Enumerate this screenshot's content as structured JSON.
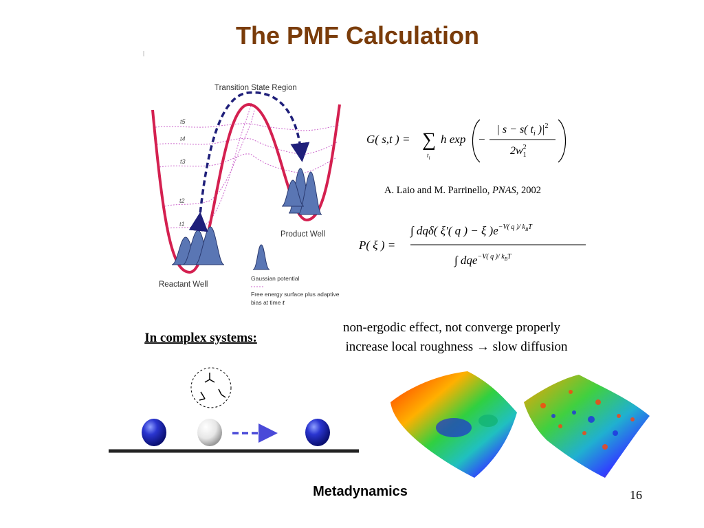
{
  "title": "The PMF Calculation",
  "figure": {
    "transition_label": "Transition State Region",
    "time_labels": [
      "t5",
      "t4",
      "t3",
      "t2",
      "t1"
    ],
    "product_label": "Product Well",
    "reactant_label": "Reactant Well",
    "legend": {
      "gaussian": "Gaussian potential",
      "surface_line1": "Free energy surface plus adaptive",
      "surface_line2": "bias at time ",
      "surface_time": "t"
    }
  },
  "equations": {
    "bias": {
      "lhs": "G( s,t ) =",
      "sum": "∑",
      "sum_index": "t",
      "sum_index_sub": "i",
      "term": "h exp",
      "minus": "−",
      "numerator": "| s − s( t",
      "numerator_sub": "i",
      "numerator_end": " )|",
      "numerator_sup": "2",
      "denominator": "2w",
      "denominator_sup": "2",
      "denominator_sub": "1"
    },
    "citation": {
      "authors": "A. Laio and M. Parrinello, ",
      "journal": "PNAS",
      "year": ", 2002"
    },
    "pmf": {
      "lhs": "P( ξ ) =",
      "numerator": "∫ dqδ( ξ′( q ) − ξ )e",
      "numerator_sup": "−V( q )/ k",
      "numerator_sup_sub": "B",
      "numerator_sup_end": "T",
      "denominator": "∫ dqe",
      "denominator_sup": "−V( q )/ k",
      "denominator_sup_sub": "B",
      "denominator_sup_end": "T"
    }
  },
  "systems_heading": "In complex systems:",
  "effects": [
    "non-ergodic effect, not converge properly",
    "increase local roughness → slow diffusion"
  ],
  "footer": {
    "caption": "Metadynamics",
    "page": "16"
  }
}
